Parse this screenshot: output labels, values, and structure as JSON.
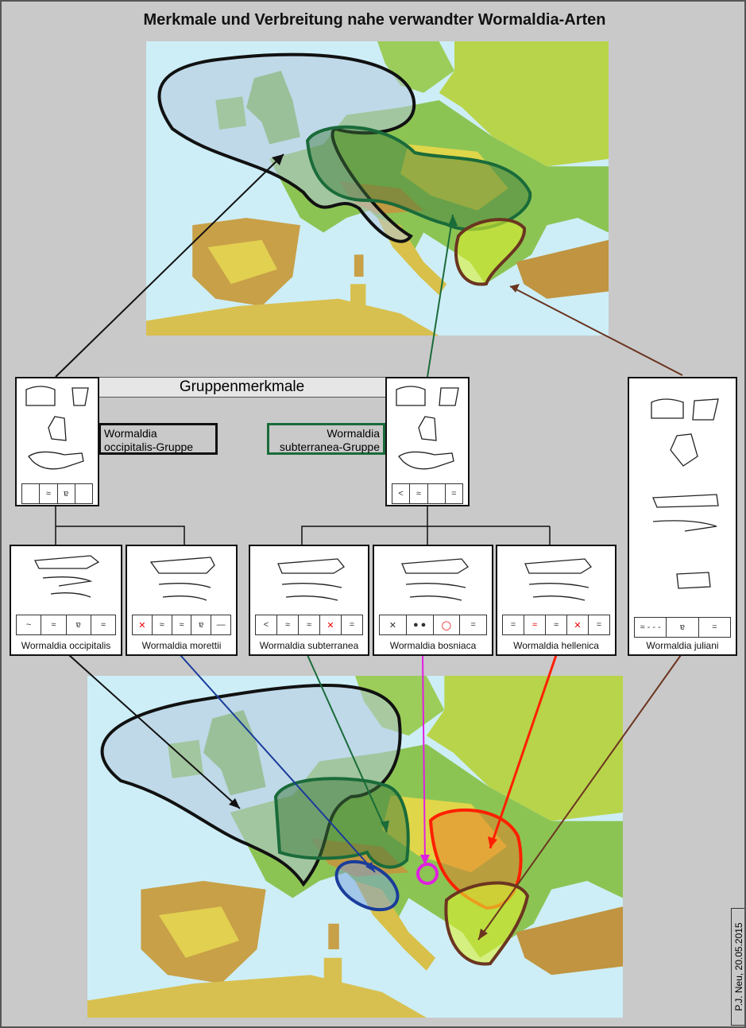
{
  "title": "Merkmale und Verbreitung nahe verwandter Wormaldia-Arten",
  "group_header": "Gruppenmerkmale",
  "groups": [
    {
      "label": "Wormaldia occipitalis-Gruppe",
      "line1": "Wormaldia",
      "line2": "occipitalis-Gruppe",
      "color": "#111111"
    },
    {
      "label": "Wormaldia subterranea-Gruppe",
      "line1": "Wormaldia",
      "line2": "subterranea-Gruppe",
      "color": "#1a6b3a"
    }
  ],
  "species": [
    {
      "name": "Wormaldia occipitalis",
      "color": "#111111"
    },
    {
      "name": "Wormaldia morettii",
      "color": "#1a3c9a"
    },
    {
      "name": "Wormaldia subterranea",
      "color": "#1a6b3a"
    },
    {
      "name": "Wormaldia bosniaca",
      "color": "#e020e0"
    },
    {
      "name": "Wormaldia hellenica",
      "color": "#ff2000"
    },
    {
      "name": "Wormaldia juliani",
      "color": "#5a2a1a"
    }
  ],
  "colors": {
    "sea": "#cdeef7",
    "land_low": "#7fc04a",
    "land_mid": "#e6dc4a",
    "land_high": "#b88a3c",
    "background": "#c9c9c9"
  },
  "credit": "P.J. Neu, 20.05.2015"
}
